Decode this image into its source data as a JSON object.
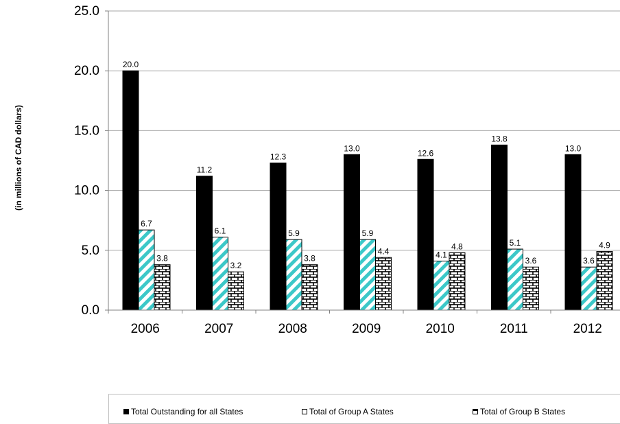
{
  "chart_data": {
    "type": "bar",
    "categories": [
      "2006",
      "2007",
      "2008",
      "2009",
      "2010",
      "2011",
      "2012"
    ],
    "series": [
      {
        "name": "Total Outstanding for all States",
        "values": [
          20.0,
          11.2,
          12.3,
          13.0,
          12.6,
          13.8,
          13.0
        ],
        "labels": [
          "20.0",
          "11.2",
          "12.3",
          "13.0",
          "12.6",
          "13.8",
          "13.0"
        ],
        "color": "#000000",
        "pattern": "solid"
      },
      {
        "name": "Total of Group A States",
        "values": [
          6.7,
          6.1,
          5.9,
          5.9,
          4.1,
          5.1,
          3.6
        ],
        "labels": [
          "6.7",
          "6.1",
          "5.9",
          "5.9",
          "4.1",
          "5.1",
          "3.6"
        ],
        "color": "#3cc8c8",
        "pattern": "diagonal-stripes"
      },
      {
        "name": "Total of Group B States",
        "values": [
          3.8,
          3.2,
          3.8,
          4.4,
          4.8,
          3.6,
          4.9
        ],
        "labels": [
          "3.8",
          "3.2",
          "3.8",
          "4.4",
          "4.8",
          "3.6",
          "4.9"
        ],
        "color": "#000000",
        "pattern": "brick"
      }
    ],
    "ylabel": "(in millions of CAD dollars)",
    "ylim": [
      0,
      25
    ],
    "yticks": [
      "0.0",
      "5.0",
      "10.0",
      "15.0",
      "20.0",
      "25.0"
    ],
    "grid": true,
    "legend_position": "bottom"
  }
}
